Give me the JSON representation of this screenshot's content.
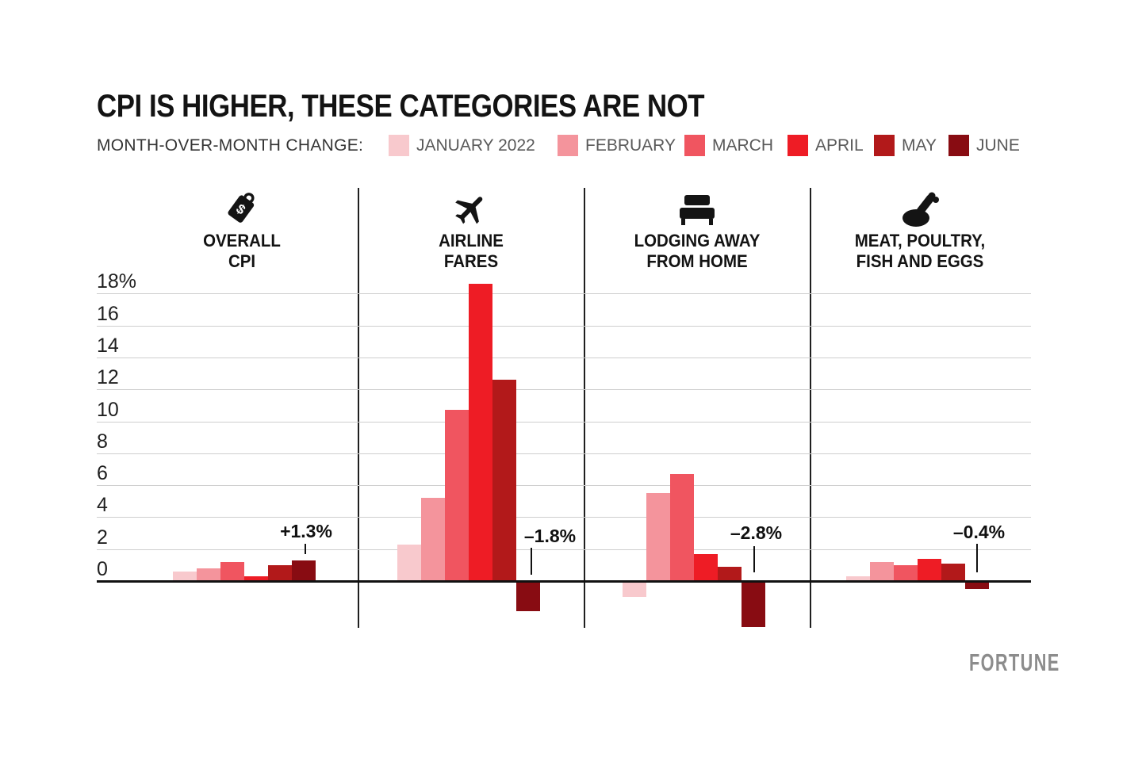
{
  "title": "CPI IS HIGHER, THESE CATEGORIES ARE NOT",
  "legend": {
    "caption": "MONTH-OVER-MONTH CHANGE:"
  },
  "footer": {
    "brand": "FORTUNE"
  },
  "chart_data": {
    "type": "bar",
    "title": "CPI IS HIGHER, THESE CATEGORIES ARE NOT",
    "subtitle": "MONTH-OVER-MONTH CHANGE:",
    "months": [
      "JANUARY 2022",
      "FEBRUARY",
      "MARCH",
      "APRIL",
      "MAY",
      "JUNE"
    ],
    "month_colors": [
      "#f8c9cd",
      "#f4949c",
      "#f05560",
      "#ee1c25",
      "#b2191a",
      "#880c12"
    ],
    "value_unit": "% month-over-month change",
    "yticks": [
      "18%",
      "16",
      "14",
      "12",
      "10",
      "8",
      "6",
      "4",
      "2",
      "0"
    ],
    "ylim": [
      -3.3,
      19
    ],
    "grid": true,
    "legend_position": "top",
    "panels": [
      {
        "title": "OVERALL CPI",
        "title_lines": [
          "OVERALL",
          "CPI"
        ],
        "icon": "price-tag-icon",
        "values": [
          0.6,
          0.8,
          1.2,
          0.3,
          1.0,
          1.3
        ],
        "annotation": "+1.3%"
      },
      {
        "title": "AIRLINE FARES",
        "title_lines": [
          "AIRLINE",
          "FARES"
        ],
        "icon": "airplane-icon",
        "values": [
          2.3,
          5.2,
          10.7,
          18.6,
          12.6,
          -1.8
        ],
        "annotation": "–1.8%"
      },
      {
        "title": "LODGING AWAY FROM HOME",
        "title_lines": [
          "LODGING AWAY",
          "FROM HOME"
        ],
        "icon": "bed-icon",
        "values": [
          -0.9,
          5.5,
          6.7,
          1.7,
          0.9,
          -2.8
        ],
        "annotation": "–2.8%"
      },
      {
        "title": "MEAT, POULTRY, FISH AND EGGS",
        "title_lines": [
          "MEAT, POULTRY,",
          "FISH AND EGGS"
        ],
        "icon": "poultry-icon",
        "values": [
          0.3,
          1.2,
          1.0,
          1.4,
          1.1,
          -0.4
        ],
        "annotation": "–0.4%"
      }
    ]
  }
}
